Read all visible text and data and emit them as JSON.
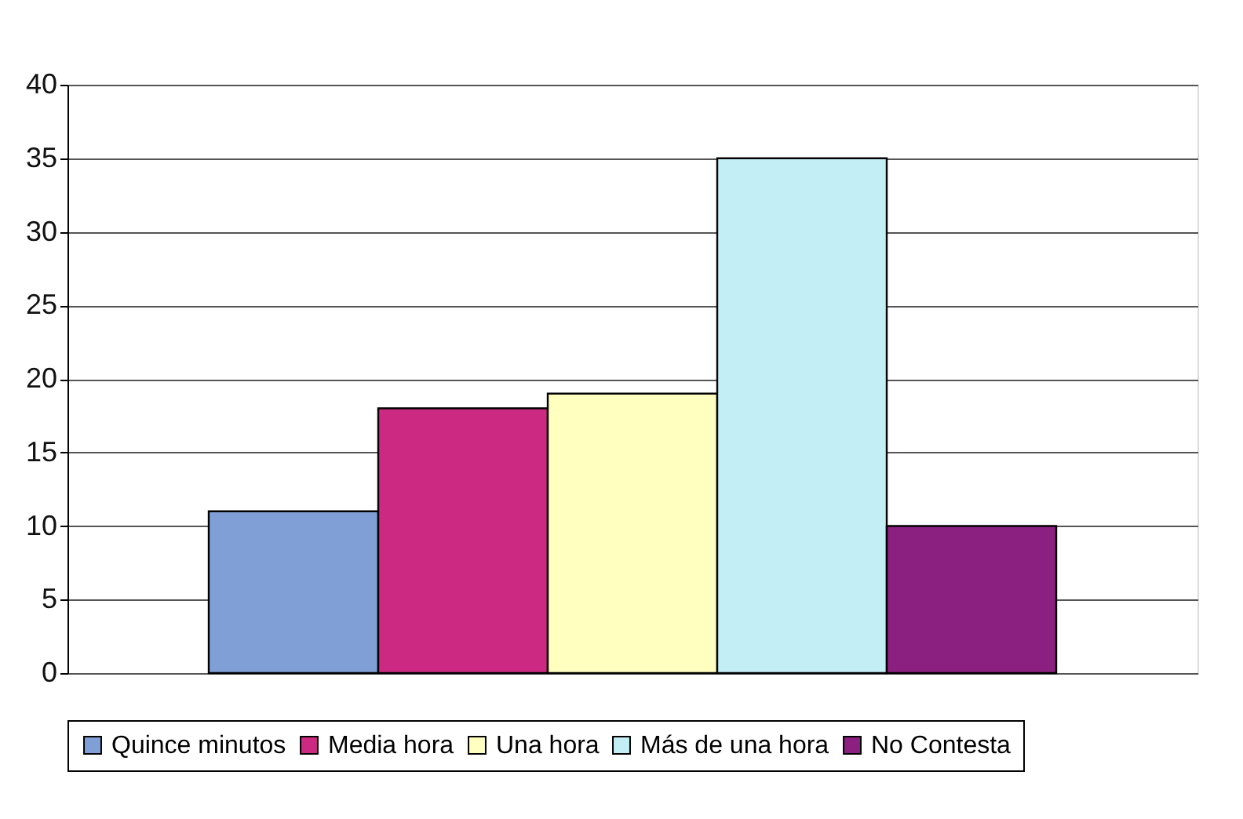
{
  "chart_data": {
    "type": "bar",
    "categories": [
      null
    ],
    "series": [
      {
        "name": "Quince minutos",
        "color": "#7f9fd6",
        "values": [
          11
        ]
      },
      {
        "name": "Media hora",
        "color": "#cc2a82",
        "values": [
          18
        ]
      },
      {
        "name": "Una hora",
        "color": "#ffffc0",
        "values": [
          19
        ]
      },
      {
        "name": "Más de una hora",
        "color": "#c4eef6",
        "values": [
          35
        ]
      },
      {
        "name": "No Contesta",
        "color": "#8c2080",
        "values": [
          10
        ]
      }
    ],
    "ylim": [
      0,
      40
    ],
    "yticks": [
      0,
      5,
      10,
      15,
      20,
      25,
      30,
      35,
      40
    ],
    "grid": "y",
    "legend": "bottom",
    "tick_labels": "y"
  }
}
